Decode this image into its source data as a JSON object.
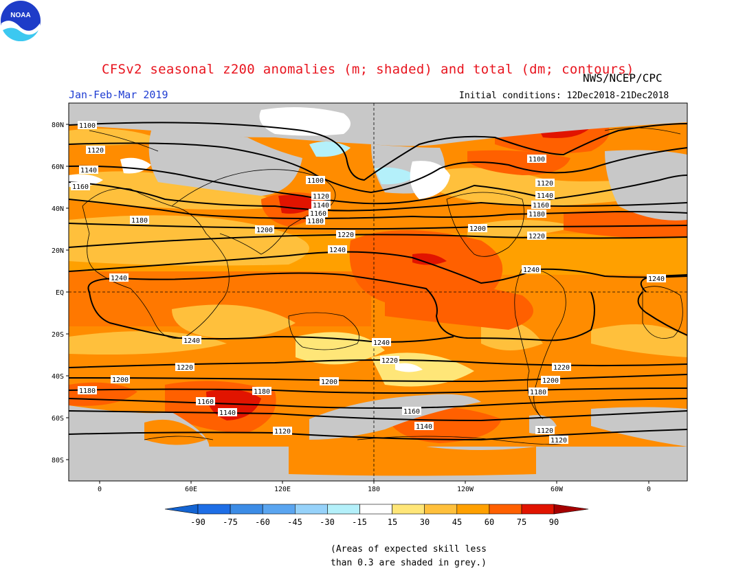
{
  "header": {
    "title": "CFSv2 seasonal z200 anomalies (m; shaded) and total (dm; contours)",
    "period": "Jan-Feb-Mar 2019",
    "initial_conditions": "Initial conditions: 12Dec2018-21Dec2018",
    "agency": "NWS/NCEP/CPC",
    "logo_text": "NOAA"
  },
  "map": {
    "lat_labels": [
      "80N",
      "60N",
      "40N",
      "20N",
      "EQ",
      "20S",
      "40S",
      "60S",
      "80S"
    ],
    "lon_labels": [
      "0",
      "60E",
      "120E",
      "180",
      "120W",
      "60W",
      "0"
    ],
    "contours": [
      {
        "value": "1100",
        "labels": [
          "1100",
          "1100",
          "1100"
        ]
      },
      {
        "value": "1120",
        "labels": [
          "1120",
          "1120",
          "1120",
          "1120"
        ]
      },
      {
        "value": "1140",
        "labels": [
          "1140",
          "1140",
          "1140"
        ]
      },
      {
        "value": "1160",
        "labels": [
          "1160",
          "1160",
          "1160"
        ]
      },
      {
        "value": "1180",
        "labels": [
          "1180",
          "1180",
          "1180"
        ]
      },
      {
        "value": "1200",
        "labels": [
          "1200",
          "1200"
        ]
      },
      {
        "value": "1220",
        "labels": [
          "1220",
          "1220"
        ]
      },
      {
        "value": "1240",
        "labels": [
          "1240",
          "1240",
          "1240",
          "1240"
        ]
      },
      {
        "value": "1240",
        "labels": [
          "1240",
          "1240"
        ]
      },
      {
        "value": "1220",
        "labels": [
          "1220",
          "1220",
          "1220"
        ]
      },
      {
        "value": "1200",
        "labels": [
          "1200",
          "1200",
          "1200"
        ]
      },
      {
        "value": "1180",
        "labels": [
          "1180",
          "1180",
          "1180"
        ]
      },
      {
        "value": "1160",
        "labels": [
          "1160",
          "1160"
        ]
      },
      {
        "value": "1140",
        "labels": [
          "1140",
          "1140"
        ]
      },
      {
        "value": "1120",
        "labels": [
          "1120",
          "1120"
        ]
      }
    ]
  },
  "colorbar": {
    "ticks": [
      "-90",
      "-75",
      "-60",
      "-45",
      "-30",
      "-15",
      "15",
      "30",
      "45",
      "60",
      "75",
      "90"
    ],
    "colors": [
      "#1464d2",
      "#1e6ee6",
      "#3c8ce6",
      "#5aa5f0",
      "#96d2fa",
      "#b4f0fa",
      "#ffffff",
      "#ffe678",
      "#ffc03c",
      "#ffa000",
      "#ff6000",
      "#e11400",
      "#a50000"
    ]
  },
  "footnote": {
    "line1": "(Areas of expected skill less",
    "line2": "than 0.3 are shaded in grey.)"
  }
}
